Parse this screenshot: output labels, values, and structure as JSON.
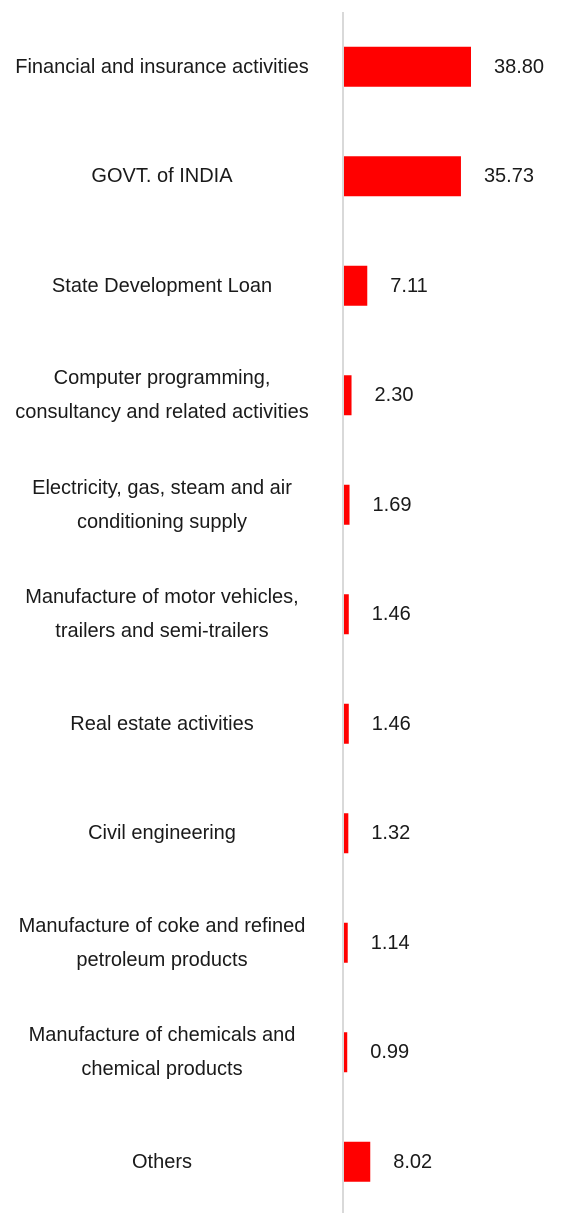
{
  "chart_data": {
    "type": "bar",
    "orientation": "horizontal",
    "categories": [
      "Financial and insurance activities",
      "GOVT. of INDIA",
      "State Development Loan",
      "Computer programming, consultancy and related activities",
      "Electricity, gas, steam and air conditioning supply",
      "Manufacture of motor vehicles, trailers and semi-trailers",
      "Real estate activities",
      "Civil engineering",
      "Manufacture of coke and refined petroleum products",
      "Manufacture of chemicals and chemical products",
      "Others"
    ],
    "values": [
      38.8,
      35.73,
      7.11,
      2.3,
      1.69,
      1.46,
      1.46,
      1.32,
      1.14,
      0.99,
      8.02
    ],
    "value_labels": [
      "38.80",
      "35.73",
      "7.11",
      "2.30",
      "1.69",
      "1.46",
      "1.46",
      "1.32",
      "1.14",
      "0.99",
      "8.02"
    ],
    "title": "",
    "xlabel": "",
    "ylabel": "",
    "xlim": [
      0,
      40
    ],
    "grid": false,
    "legend": "none",
    "bar_color": "#ff0000",
    "axis_color": "#d9d9d9"
  }
}
